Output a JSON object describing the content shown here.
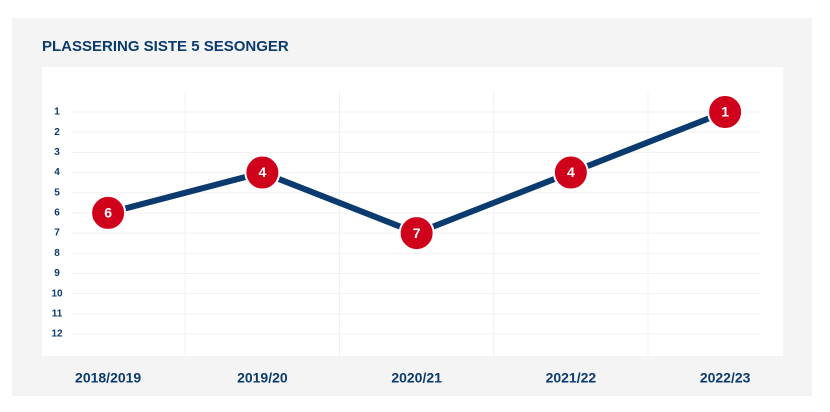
{
  "chart_data": {
    "type": "line",
    "title": "PLASSERING SISTE 5 SESONGER",
    "categories": [
      "2018/2019",
      "2019/20",
      "2020/21",
      "2021/22",
      "2022/23"
    ],
    "series": [
      {
        "color": "#0b3a6e",
        "marker_color": "#d0021b",
        "values": [
          6,
          4,
          7,
          4,
          1
        ]
      }
    ],
    "ylim": [
      1,
      12
    ],
    "y_inverted": true,
    "yticks": [
      1,
      2,
      3,
      4,
      5,
      6,
      7,
      8,
      9,
      10,
      11,
      12
    ],
    "grid": true
  }
}
